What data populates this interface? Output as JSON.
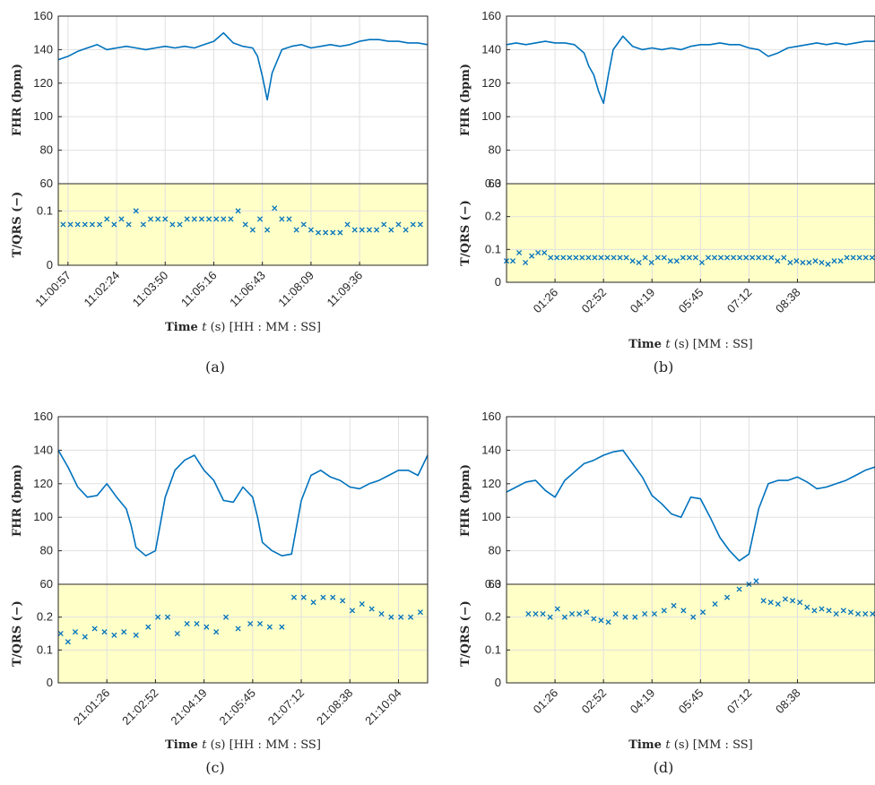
{
  "chart_data": [
    {
      "type": "line",
      "caption": "(a)",
      "xlabel_parts": [
        "Time ",
        "t",
        " (s) [HH : MM : SS]"
      ],
      "x_tick_labels": [
        "11:00:57",
        "11:02:24",
        "11:03:50",
        "11:05:16",
        "11:06:43",
        "11:08:09",
        "11:09:36"
      ],
      "x_domain": [
        0,
        7.6
      ],
      "x_tick_positions": [
        0.2,
        1.2,
        2.2,
        3.2,
        4.2,
        5.2,
        6.2
      ],
      "top": {
        "ylabel": "FHR (bpm)",
        "ylim": [
          60,
          160
        ],
        "yticks": [
          60,
          80,
          100,
          120,
          140,
          160
        ],
        "series": {
          "x": [
            0,
            0.2,
            0.4,
            0.6,
            0.8,
            1.0,
            1.2,
            1.4,
            1.6,
            1.8,
            2.0,
            2.2,
            2.4,
            2.6,
            2.8,
            3.0,
            3.2,
            3.4,
            3.6,
            3.8,
            4.0,
            4.1,
            4.2,
            4.3,
            4.4,
            4.5,
            4.6,
            4.8,
            5.0,
            5.2,
            5.4,
            5.6,
            5.8,
            6.0,
            6.2,
            6.4,
            6.6,
            6.8,
            7.0,
            7.2,
            7.4,
            7.6
          ],
          "y": [
            134,
            136,
            139,
            141,
            143,
            140,
            141,
            142,
            141,
            140,
            141,
            142,
            141,
            142,
            141,
            143,
            145,
            150,
            144,
            142,
            141,
            136,
            124,
            110,
            126,
            133,
            140,
            142,
            143,
            141,
            142,
            143,
            142,
            143,
            145,
            146,
            146,
            145,
            145,
            144,
            144,
            143
          ]
        }
      },
      "bottom": {
        "ylabel": "T/QRS (−)",
        "ylim": [
          0,
          0.15
        ],
        "yticks": [
          0,
          0.1
        ],
        "markers": {
          "x": [
            0.1,
            0.25,
            0.4,
            0.55,
            0.7,
            0.85,
            1.0,
            1.15,
            1.3,
            1.45,
            1.6,
            1.75,
            1.9,
            2.05,
            2.2,
            2.35,
            2.5,
            2.65,
            2.8,
            2.95,
            3.1,
            3.25,
            3.4,
            3.55,
            3.7,
            3.85,
            4.0,
            4.15,
            4.3,
            4.45,
            4.6,
            4.75,
            4.9,
            5.05,
            5.2,
            5.35,
            5.5,
            5.65,
            5.8,
            5.95,
            6.1,
            6.25,
            6.4,
            6.55,
            6.7,
            6.85,
            7.0,
            7.15,
            7.3,
            7.45
          ],
          "y": [
            0.075,
            0.075,
            0.075,
            0.075,
            0.075,
            0.075,
            0.085,
            0.075,
            0.085,
            0.075,
            0.1,
            0.075,
            0.085,
            0.085,
            0.085,
            0.075,
            0.075,
            0.085,
            0.085,
            0.085,
            0.085,
            0.085,
            0.085,
            0.085,
            0.1,
            0.075,
            0.065,
            0.085,
            0.065,
            0.105,
            0.085,
            0.085,
            0.065,
            0.075,
            0.065,
            0.06,
            0.06,
            0.06,
            0.06,
            0.075,
            0.065,
            0.065,
            0.065,
            0.065,
            0.075,
            0.065,
            0.075,
            0.065,
            0.075,
            0.075
          ]
        }
      }
    },
    {
      "type": "line",
      "caption": "(b)",
      "xlabel_parts": [
        "Time ",
        "t",
        " (s) [MM : SS]"
      ],
      "x_tick_labels": [
        "01:26",
        "02:52",
        "04:19",
        "05:45",
        "07:12",
        "08:38"
      ],
      "x_domain": [
        0,
        7.6
      ],
      "x_tick_positions": [
        1,
        2,
        3,
        4,
        5,
        6
      ],
      "top": {
        "ylabel": "FHR (bpm)",
        "ylim": [
          60,
          160
        ],
        "yticks": [
          60,
          80,
          100,
          120,
          140,
          160
        ],
        "series": {
          "x": [
            0,
            0.2,
            0.4,
            0.6,
            0.8,
            1.0,
            1.2,
            1.4,
            1.6,
            1.7,
            1.8,
            1.9,
            2.0,
            2.1,
            2.2,
            2.4,
            2.6,
            2.8,
            3.0,
            3.2,
            3.4,
            3.6,
            3.8,
            4.0,
            4.2,
            4.4,
            4.6,
            4.8,
            5.0,
            5.2,
            5.4,
            5.6,
            5.8,
            6.0,
            6.2,
            6.4,
            6.6,
            6.8,
            7.0,
            7.2,
            7.4,
            7.6
          ],
          "y": [
            143,
            144,
            143,
            144,
            145,
            144,
            144,
            143,
            138,
            130,
            125,
            115,
            108,
            125,
            140,
            148,
            142,
            140,
            141,
            140,
            141,
            140,
            142,
            143,
            143,
            144,
            143,
            143,
            141,
            140,
            136,
            138,
            141,
            142,
            143,
            144,
            143,
            144,
            143,
            144,
            145,
            145
          ]
        }
      },
      "bottom": {
        "ylabel": "T/QRS (−)",
        "ylim": [
          0,
          0.3
        ],
        "yticks": [
          0,
          0.1,
          0.2,
          0.3
        ],
        "markers": {
          "x": [
            0.0,
            0.13,
            0.26,
            0.39,
            0.52,
            0.65,
            0.78,
            0.91,
            1.04,
            1.17,
            1.3,
            1.43,
            1.56,
            1.69,
            1.82,
            1.95,
            2.08,
            2.21,
            2.34,
            2.47,
            2.6,
            2.73,
            2.86,
            2.99,
            3.12,
            3.25,
            3.38,
            3.51,
            3.64,
            3.77,
            3.9,
            4.03,
            4.16,
            4.29,
            4.42,
            4.55,
            4.68,
            4.81,
            4.94,
            5.07,
            5.2,
            5.33,
            5.46,
            5.59,
            5.72,
            5.85,
            5.98,
            6.11,
            6.24,
            6.37,
            6.5,
            6.63,
            6.76,
            6.89,
            7.02,
            7.15,
            7.28,
            7.41,
            7.54
          ],
          "y": [
            0.065,
            0.065,
            0.09,
            0.06,
            0.08,
            0.09,
            0.09,
            0.075,
            0.075,
            0.075,
            0.075,
            0.075,
            0.075,
            0.075,
            0.075,
            0.075,
            0.075,
            0.075,
            0.075,
            0.075,
            0.065,
            0.06,
            0.075,
            0.06,
            0.075,
            0.075,
            0.065,
            0.065,
            0.075,
            0.075,
            0.075,
            0.06,
            0.075,
            0.075,
            0.075,
            0.075,
            0.075,
            0.075,
            0.075,
            0.075,
            0.075,
            0.075,
            0.075,
            0.065,
            0.075,
            0.06,
            0.065,
            0.06,
            0.06,
            0.065,
            0.06,
            0.055,
            0.065,
            0.065,
            0.075,
            0.075,
            0.075,
            0.075,
            0.075
          ]
        }
      }
    },
    {
      "type": "line",
      "caption": "(c)",
      "xlabel_parts": [
        "Time ",
        "t",
        " (s) [HH : MM : SS]"
      ],
      "x_tick_labels": [
        "21:01:26",
        "21:02:52",
        "21:04:19",
        "21:05:45",
        "21:07:12",
        "21:08:38",
        "21:10:04"
      ],
      "x_domain": [
        0,
        7.6
      ],
      "x_tick_positions": [
        1,
        2,
        3,
        4,
        5,
        6,
        7
      ],
      "top": {
        "ylabel": "FHR (bpm)",
        "ylim": [
          60,
          160
        ],
        "yticks": [
          60,
          80,
          100,
          120,
          140,
          160
        ],
        "series": {
          "x": [
            0,
            0.2,
            0.4,
            0.6,
            0.8,
            1.0,
            1.2,
            1.4,
            1.5,
            1.6,
            1.8,
            2.0,
            2.2,
            2.4,
            2.6,
            2.8,
            3.0,
            3.2,
            3.4,
            3.6,
            3.8,
            4.0,
            4.1,
            4.2,
            4.4,
            4.6,
            4.8,
            5.0,
            5.2,
            5.4,
            5.6,
            5.8,
            6.0,
            6.2,
            6.4,
            6.6,
            6.8,
            7.0,
            7.2,
            7.4,
            7.6
          ],
          "y": [
            140,
            130,
            118,
            112,
            113,
            120,
            112,
            105,
            95,
            82,
            77,
            80,
            112,
            128,
            134,
            137,
            128,
            122,
            110,
            109,
            118,
            112,
            100,
            85,
            80,
            77,
            78,
            110,
            125,
            128,
            124,
            122,
            118,
            117,
            120,
            122,
            125,
            128,
            128,
            125,
            137
          ]
        }
      },
      "bottom": {
        "ylabel": "T/QRS (−)",
        "ylim": [
          0,
          0.3
        ],
        "yticks": [
          0,
          0.1,
          0.2
        ],
        "markers": {
          "x": [
            0.05,
            0.2,
            0.35,
            0.55,
            0.75,
            0.95,
            1.15,
            1.35,
            1.6,
            1.85,
            2.05,
            2.25,
            2.45,
            2.65,
            2.85,
            3.05,
            3.25,
            3.45,
            3.7,
            3.95,
            4.15,
            4.35,
            4.6,
            4.85,
            5.05,
            5.25,
            5.45,
            5.65,
            5.85,
            6.05,
            6.25,
            6.45,
            6.65,
            6.85,
            7.05,
            7.25,
            7.45
          ],
          "y": [
            0.15,
            0.125,
            0.155,
            0.14,
            0.165,
            0.155,
            0.145,
            0.155,
            0.145,
            0.17,
            0.2,
            0.2,
            0.15,
            0.18,
            0.18,
            0.17,
            0.155,
            0.2,
            0.165,
            0.18,
            0.18,
            0.17,
            0.17,
            0.26,
            0.26,
            0.245,
            0.26,
            0.26,
            0.25,
            0.22,
            0.24,
            0.225,
            0.21,
            0.2,
            0.2,
            0.2,
            0.215
          ]
        }
      }
    },
    {
      "type": "line",
      "caption": "(d)",
      "xlabel_parts": [
        "Time ",
        "t",
        " (s) [MM : SS]"
      ],
      "x_tick_labels": [
        "01:26",
        "02:52",
        "04:19",
        "05:45",
        "07:12",
        "08:38"
      ],
      "x_domain": [
        0,
        7.6
      ],
      "x_tick_positions": [
        1,
        2,
        3,
        4,
        5,
        6
      ],
      "top": {
        "ylabel": "FHR (bpm)",
        "ylim": [
          60,
          160
        ],
        "yticks": [
          60,
          80,
          100,
          120,
          140,
          160
        ],
        "series": {
          "x": [
            0,
            0.2,
            0.4,
            0.6,
            0.8,
            1.0,
            1.2,
            1.4,
            1.6,
            1.8,
            2.0,
            2.2,
            2.4,
            2.6,
            2.8,
            3.0,
            3.2,
            3.4,
            3.6,
            3.8,
            4.0,
            4.2,
            4.4,
            4.6,
            4.8,
            5.0,
            5.2,
            5.4,
            5.6,
            5.8,
            6.0,
            6.2,
            6.4,
            6.6,
            6.8,
            7.0,
            7.2,
            7.4,
            7.6
          ],
          "y": [
            115,
            118,
            121,
            122,
            116,
            112,
            122,
            127,
            132,
            134,
            137,
            139,
            140,
            132,
            124,
            113,
            108,
            102,
            100,
            112,
            111,
            100,
            88,
            80,
            74,
            78,
            105,
            120,
            122,
            122,
            124,
            121,
            117,
            118,
            120,
            122,
            125,
            128,
            130
          ]
        }
      },
      "bottom": {
        "ylabel": "T/QRS (−)",
        "ylim": [
          0,
          0.3
        ],
        "yticks": [
          0,
          0.1,
          0.2,
          0.3
        ],
        "markers": {
          "x": [
            0.45,
            0.6,
            0.75,
            0.9,
            1.05,
            1.2,
            1.35,
            1.5,
            1.65,
            1.8,
            1.95,
            2.1,
            2.25,
            2.45,
            2.65,
            2.85,
            3.05,
            3.25,
            3.45,
            3.65,
            3.85,
            4.05,
            4.3,
            4.55,
            4.8,
            5.0,
            5.15,
            5.3,
            5.45,
            5.6,
            5.75,
            5.9,
            6.05,
            6.2,
            6.35,
            6.5,
            6.65,
            6.8,
            6.95,
            7.1,
            7.25,
            7.4,
            7.55
          ],
          "y": [
            0.21,
            0.21,
            0.21,
            0.2,
            0.225,
            0.2,
            0.21,
            0.21,
            0.215,
            0.195,
            0.19,
            0.185,
            0.21,
            0.2,
            0.2,
            0.21,
            0.21,
            0.22,
            0.235,
            0.22,
            0.2,
            0.215,
            0.24,
            0.26,
            0.285,
            0.3,
            0.31,
            0.25,
            0.245,
            0.24,
            0.255,
            0.25,
            0.245,
            0.23,
            0.22,
            0.225,
            0.22,
            0.21,
            0.22,
            0.215,
            0.21,
            0.21,
            0.21
          ]
        }
      }
    }
  ],
  "colors": {
    "line": "#0072BD",
    "band": "#FFFFC8",
    "axis": "#262626",
    "grid": "#E0E0E0"
  }
}
